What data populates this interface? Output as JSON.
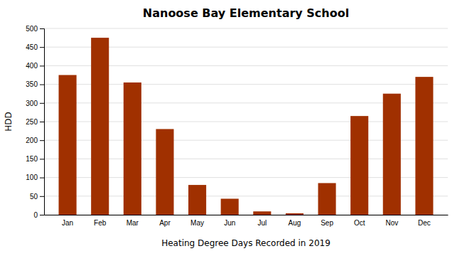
{
  "chart_data": {
    "type": "bar",
    "title": "Nanoose Bay Elementary School",
    "xlabel": "Heating Degree Days Recorded in 2019",
    "ylabel": "HDD",
    "categories": [
      "Jan",
      "Feb",
      "Mar",
      "Apr",
      "May",
      "Jun",
      "Jul",
      "Aug",
      "Sep",
      "Oct",
      "Nov",
      "Dec"
    ],
    "values": [
      375,
      475,
      355,
      230,
      80,
      43,
      9,
      4,
      85,
      265,
      325,
      370
    ],
    "color": "#a03000",
    "ylim": [
      0,
      500
    ],
    "yticks": [
      0,
      50,
      100,
      150,
      200,
      250,
      300,
      350,
      400,
      450,
      500
    ],
    "grid": true
  }
}
